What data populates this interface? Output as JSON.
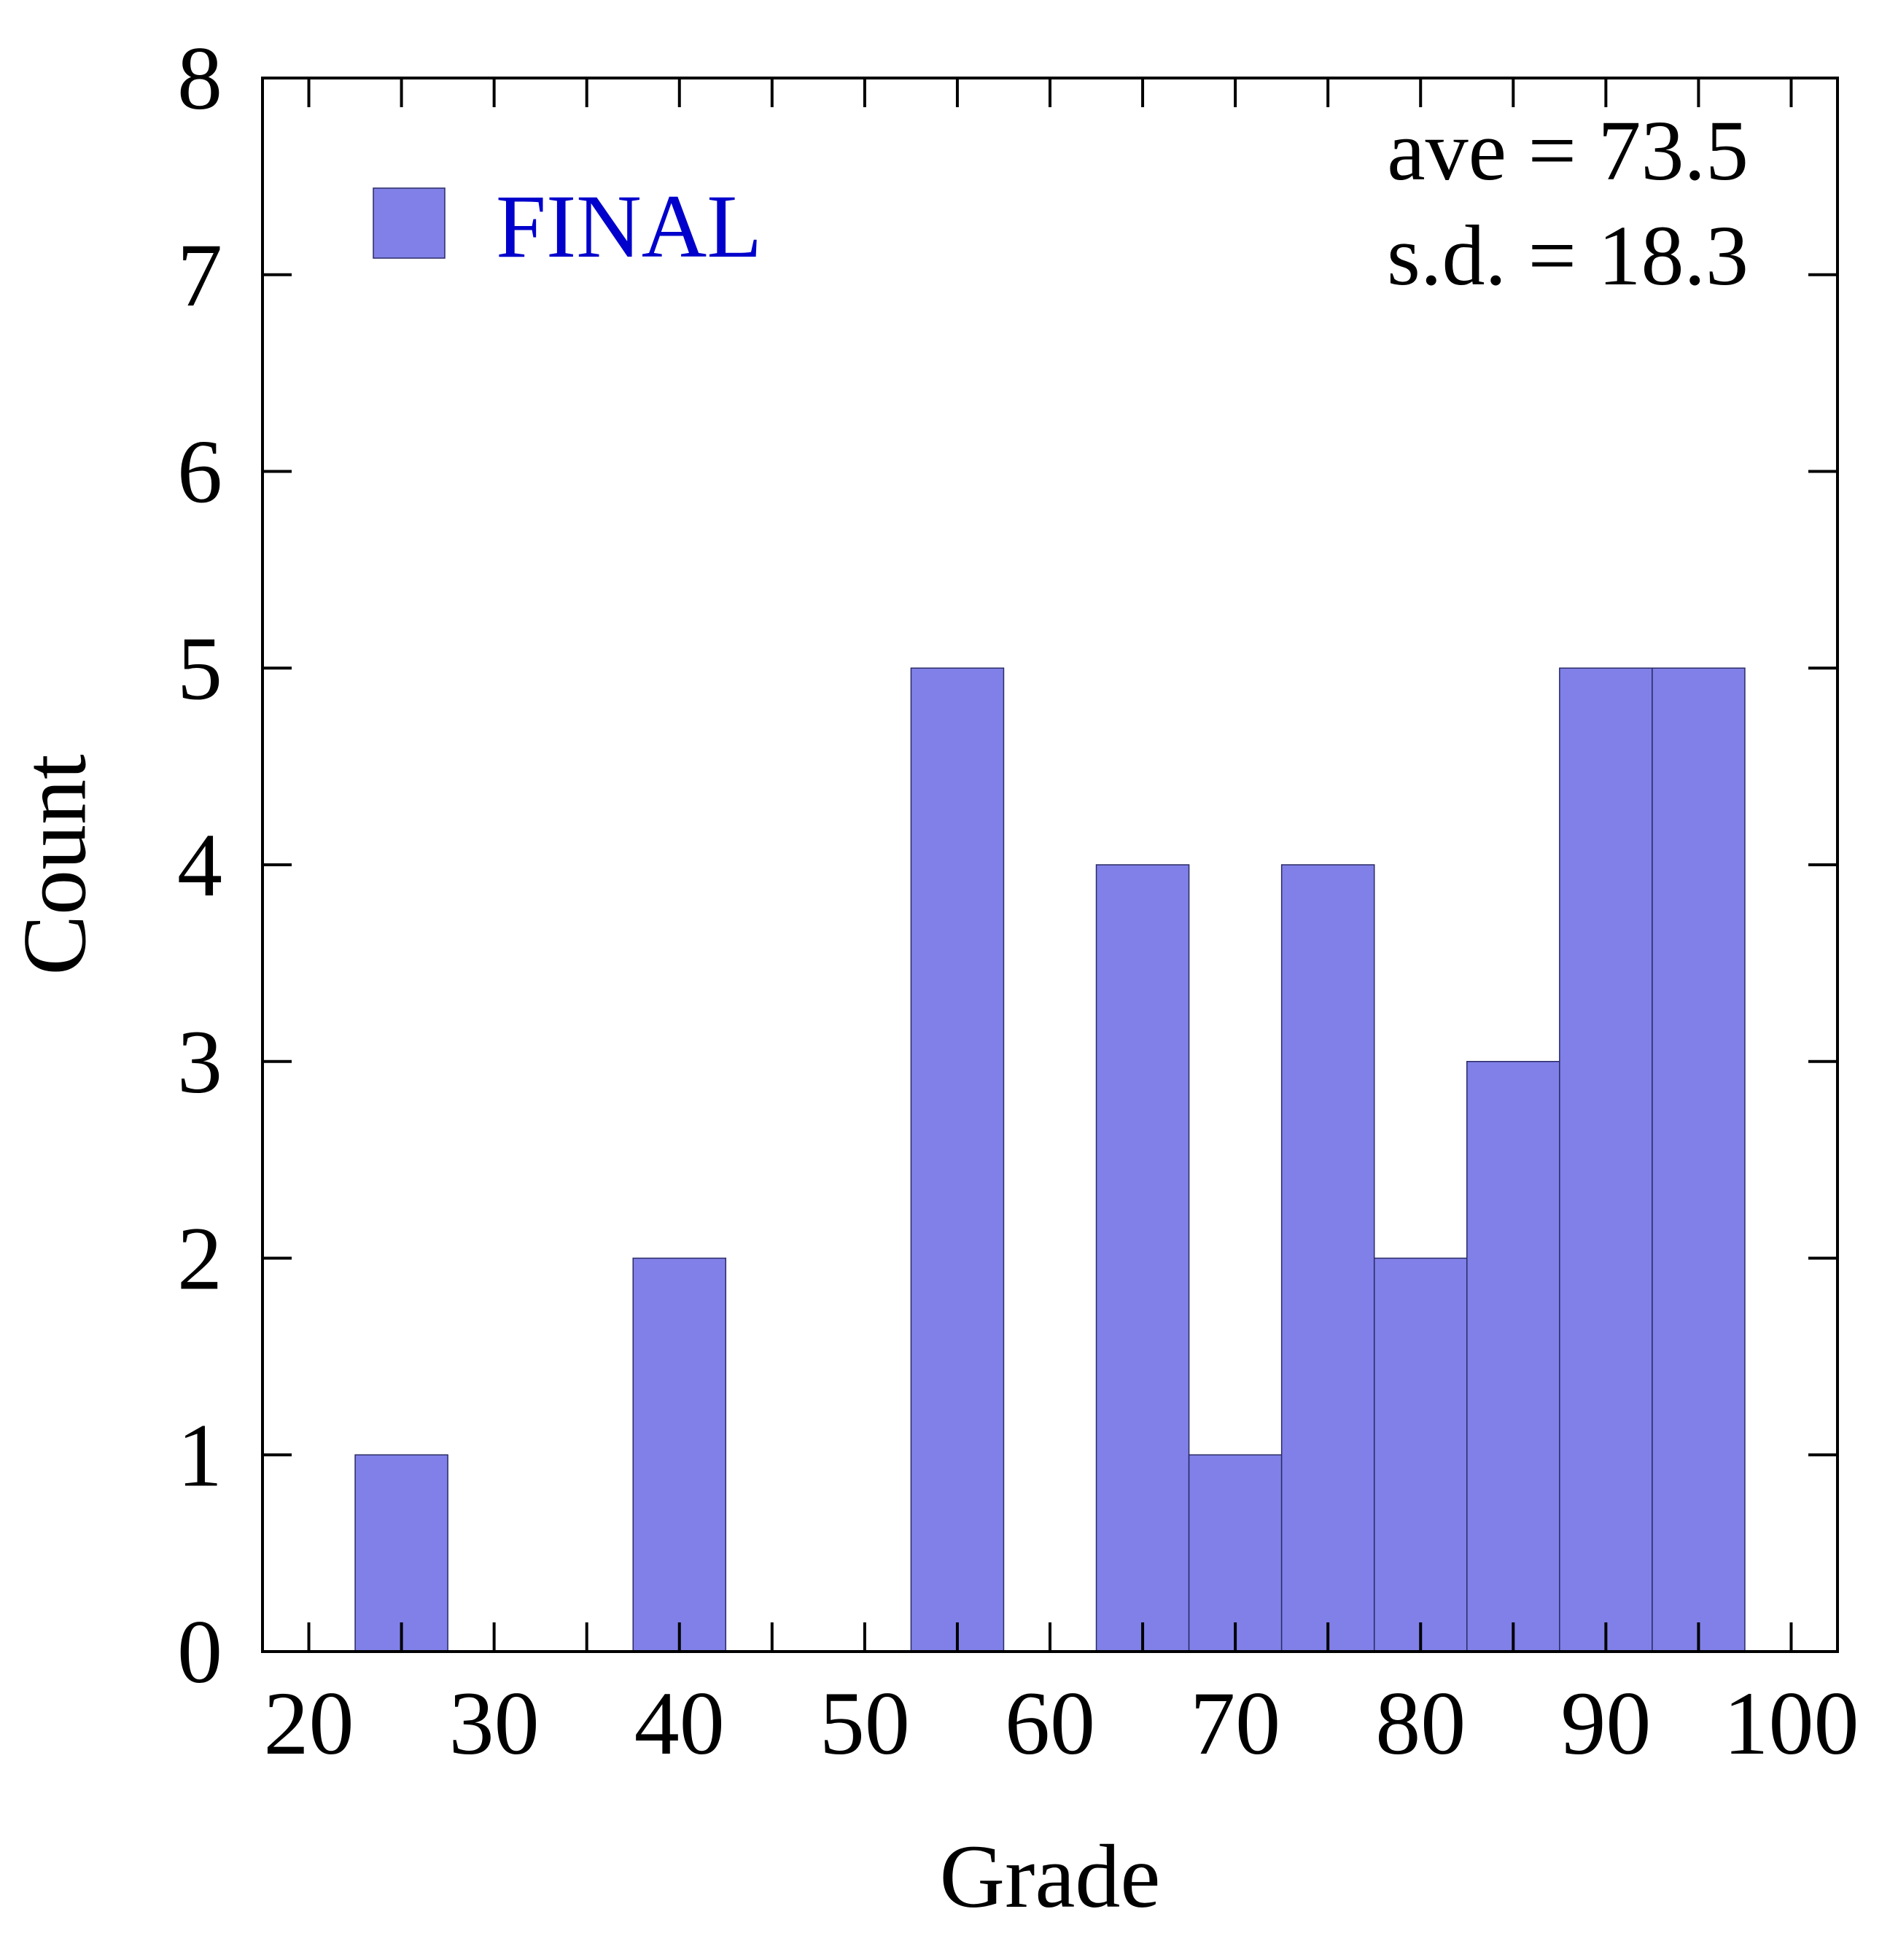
{
  "chart_data": {
    "type": "bar",
    "title": "",
    "xlabel": "Grade",
    "ylabel": "Count",
    "xlim": [
      17.5,
      102.5
    ],
    "ylim": [
      0,
      8
    ],
    "grid": false,
    "bin_width": 5,
    "x_ticks": [
      20,
      30,
      40,
      50,
      60,
      70,
      80,
      90,
      100
    ],
    "y_ticks": [
      0,
      1,
      2,
      3,
      4,
      5,
      6,
      7,
      8
    ],
    "series": [
      {
        "name": "FINAL",
        "color": "#8080e8",
        "bins": [
          {
            "center": 25,
            "count": 1
          },
          {
            "center": 40,
            "count": 2
          },
          {
            "center": 55,
            "count": 5
          },
          {
            "center": 65,
            "count": 4
          },
          {
            "center": 70,
            "count": 1
          },
          {
            "center": 75,
            "count": 4
          },
          {
            "center": 80,
            "count": 2
          },
          {
            "center": 85,
            "count": 3
          },
          {
            "center": 90,
            "count": 5
          },
          {
            "center": 95,
            "count": 5
          }
        ]
      }
    ],
    "legend": {
      "position": "top-left",
      "label": "FINAL",
      "text_color": "#0000cc"
    },
    "annotations": {
      "position": "top-right",
      "lines": [
        "ave = 73.5",
        "s.d. = 18.3"
      ]
    }
  }
}
